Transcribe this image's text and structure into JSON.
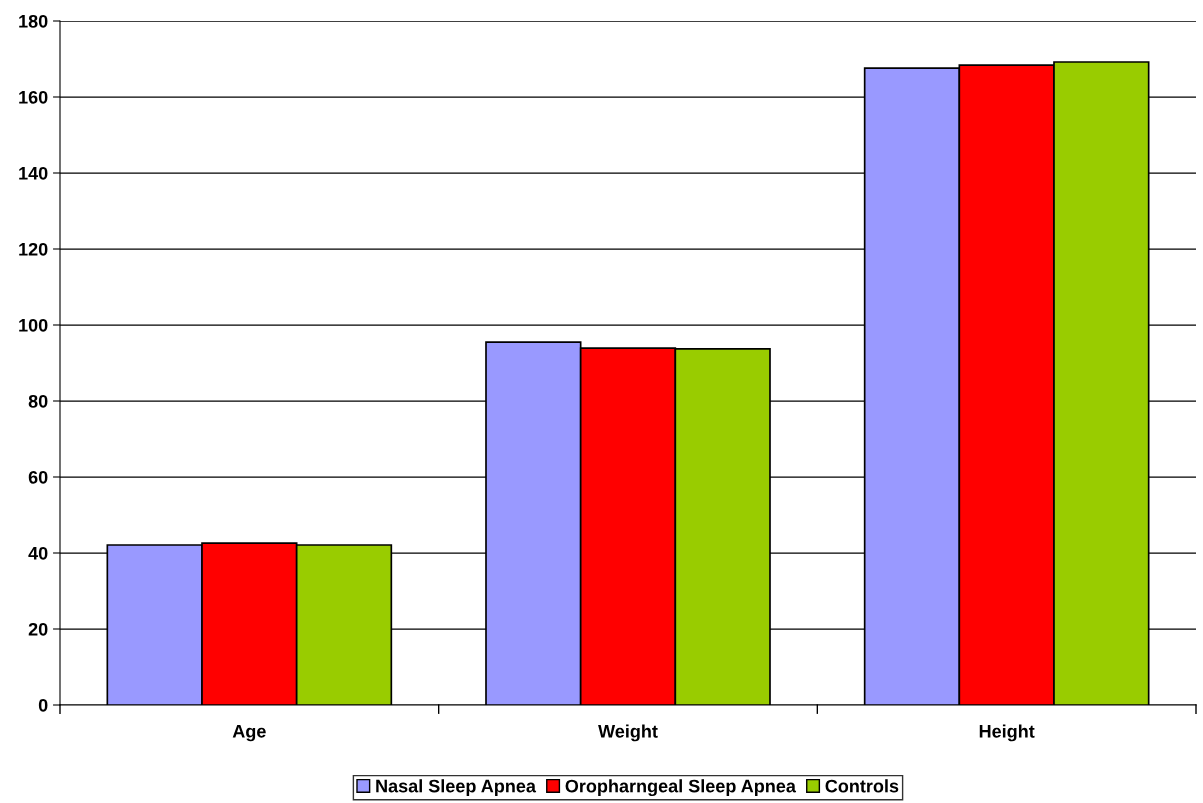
{
  "chart_data": {
    "type": "bar",
    "categories": [
      "Age",
      "Weight",
      "Height"
    ],
    "series": [
      {
        "name": "Nasal Sleep Apnea",
        "color": "#9999ff",
        "values": [
          42.1,
          95.5,
          167.6
        ]
      },
      {
        "name": "Oropharngeal Sleep Apnea",
        "color": "#ff0000",
        "values": [
          42.6,
          93.9,
          168.4
        ]
      },
      {
        "name": "Controls",
        "color": "#99cc00",
        "values": [
          42.1,
          93.7,
          169.2
        ]
      }
    ],
    "ylim": [
      0,
      180
    ],
    "yticks": [
      0,
      20,
      40,
      60,
      80,
      100,
      120,
      140,
      160,
      180
    ],
    "grid": "y",
    "legend": "bottom"
  }
}
